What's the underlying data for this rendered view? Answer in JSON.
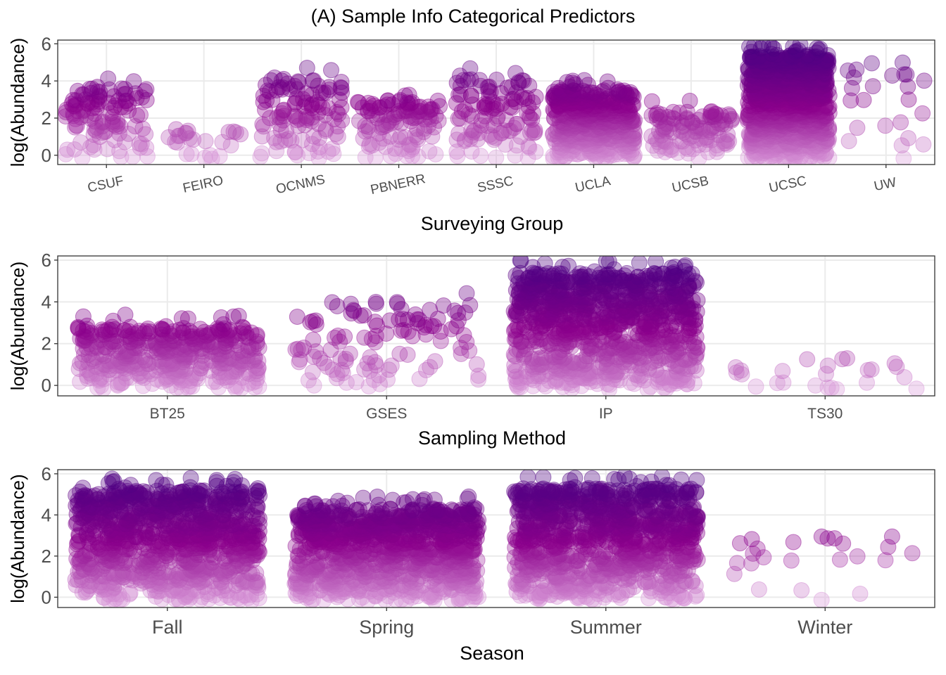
{
  "title": "(A) Sample Info Categorical Predictors",
  "colors": {
    "low": "#dda0dd",
    "mid": "#8b008b",
    "high": "#4b0082",
    "grid": "#ebebeb",
    "panel_border": "#333333"
  },
  "chart_data": [
    {
      "type": "scatter",
      "jitter": true,
      "xlabel": "Surveying Group",
      "ylabel": "log(Abundance)",
      "ylim": [
        -0.5,
        6.2
      ],
      "yticks": [
        0,
        2,
        4,
        6
      ],
      "xtick_rotation": "slanted",
      "categories": [
        "CSUF",
        "FEIRO",
        "OCNMS",
        "PBNERR",
        "SSSC",
        "UCLA",
        "UCSB",
        "UCSC",
        "UW"
      ],
      "spread": [
        {
          "max": 4.3,
          "density": "medium"
        },
        {
          "max": 1.5,
          "density": "sparse"
        },
        {
          "max": 4.8,
          "density": "medium"
        },
        {
          "max": 3.6,
          "density": "medium"
        },
        {
          "max": 4.7,
          "density": "medium"
        },
        {
          "max": 4.1,
          "density": "dense"
        },
        {
          "max": 3.0,
          "density": "medium"
        },
        {
          "max": 6.0,
          "density": "very dense"
        },
        {
          "max": 5.0,
          "density": "sparse"
        }
      ]
    },
    {
      "type": "scatter",
      "jitter": true,
      "xlabel": "Sampling Method",
      "ylabel": "log(Abundance)",
      "ylim": [
        -0.5,
        6.2
      ],
      "yticks": [
        0,
        2,
        4,
        6
      ],
      "categories": [
        "BT25",
        "GSES",
        "IP",
        "TS30"
      ],
      "spread": [
        {
          "max": 3.4,
          "density": "dense"
        },
        {
          "max": 4.6,
          "density": "medium"
        },
        {
          "max": 6.0,
          "density": "very dense"
        },
        {
          "max": 1.3,
          "density": "sparse"
        }
      ]
    },
    {
      "type": "scatter",
      "jitter": true,
      "xlabel": "Season",
      "ylabel": "log(Abundance)",
      "ylim": [
        -0.5,
        6.2
      ],
      "yticks": [
        0,
        2,
        4,
        6
      ],
      "categories": [
        "Fall",
        "Spring",
        "Summer",
        "Winter"
      ],
      "spread": [
        {
          "max": 5.8,
          "density": "very dense"
        },
        {
          "max": 4.9,
          "density": "very dense"
        },
        {
          "max": 5.9,
          "density": "very dense"
        },
        {
          "max": 3.0,
          "density": "sparse"
        }
      ]
    }
  ]
}
